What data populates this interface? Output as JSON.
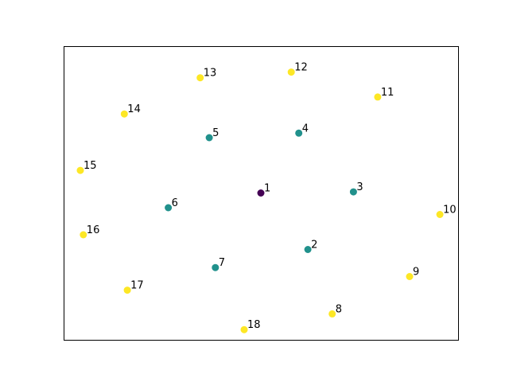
{
  "chart_data": {
    "type": "scatter",
    "title": "",
    "xlabel": "",
    "ylabel": "",
    "xticks": false,
    "yticks": false,
    "grid": false,
    "legend": null,
    "xlim": [
      -1.3,
      1.3
    ],
    "ylim": [
      -1.3,
      1.3
    ],
    "colors": {
      "center": "#440154",
      "inner_ring": "#21918c",
      "outer_ring": "#fde725"
    },
    "points": [
      {
        "label": "1",
        "x": 0.0,
        "y": 0.0,
        "group": "center"
      },
      {
        "label": "2",
        "x": 0.31,
        "y": -0.5,
        "group": "inner_ring"
      },
      {
        "label": "3",
        "x": 0.61,
        "y": 0.01,
        "group": "inner_ring"
      },
      {
        "label": "4",
        "x": 0.25,
        "y": 0.53,
        "group": "inner_ring"
      },
      {
        "label": "5",
        "x": -0.34,
        "y": 0.49,
        "group": "inner_ring"
      },
      {
        "label": "6",
        "x": -0.61,
        "y": -0.13,
        "group": "inner_ring"
      },
      {
        "label": "7",
        "x": -0.3,
        "y": -0.66,
        "group": "inner_ring"
      },
      {
        "label": "8",
        "x": 0.47,
        "y": -1.07,
        "group": "outer_ring"
      },
      {
        "label": "9",
        "x": 0.98,
        "y": -0.74,
        "group": "outer_ring"
      },
      {
        "label": "10",
        "x": 1.18,
        "y": -0.19,
        "group": "outer_ring"
      },
      {
        "label": "11",
        "x": 0.77,
        "y": 0.85,
        "group": "outer_ring"
      },
      {
        "label": "12",
        "x": 0.2,
        "y": 1.07,
        "group": "outer_ring"
      },
      {
        "label": "13",
        "x": -0.4,
        "y": 1.02,
        "group": "outer_ring"
      },
      {
        "label": "14",
        "x": -0.9,
        "y": 0.7,
        "group": "outer_ring"
      },
      {
        "label": "15",
        "x": -1.19,
        "y": 0.2,
        "group": "outer_ring"
      },
      {
        "label": "16",
        "x": -1.17,
        "y": -0.37,
        "group": "outer_ring"
      },
      {
        "label": "17",
        "x": -0.88,
        "y": -0.86,
        "group": "outer_ring"
      },
      {
        "label": "18",
        "x": -0.11,
        "y": -1.21,
        "group": "outer_ring"
      }
    ]
  }
}
